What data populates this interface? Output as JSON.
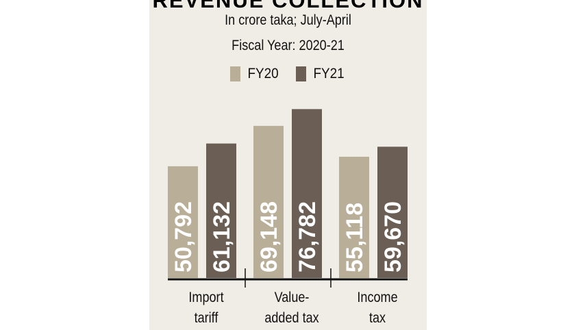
{
  "title": "REVENUE COLLECTION",
  "subtitle": "In crore taka; July-April",
  "fiscal_year": "Fiscal Year: 2020-21",
  "colors": {
    "FY20": "#b9ae97",
    "FY21": "#6b5e54",
    "panel": "#f0ede6"
  },
  "chart_data": {
    "type": "bar",
    "title": "REVENUE COLLECTION",
    "categories": [
      "Import tariff",
      "Value-added tax",
      "Income tax"
    ],
    "series": [
      {
        "name": "FY20",
        "values": [
          50792,
          69148,
          55118
        ],
        "labels": [
          "50,792",
          "69,148",
          "55,118"
        ]
      },
      {
        "name": "FY21",
        "values": [
          61132,
          76782,
          59670
        ],
        "labels": [
          "61,132",
          "76,782",
          "59,670"
        ]
      }
    ],
    "category_labels": [
      [
        "Import",
        "tariff"
      ],
      [
        "Value-",
        "added tax"
      ],
      [
        "Income",
        "tax"
      ]
    ],
    "ylim": [
      0,
      80000
    ],
    "legend": "top-center",
    "grid": false
  }
}
